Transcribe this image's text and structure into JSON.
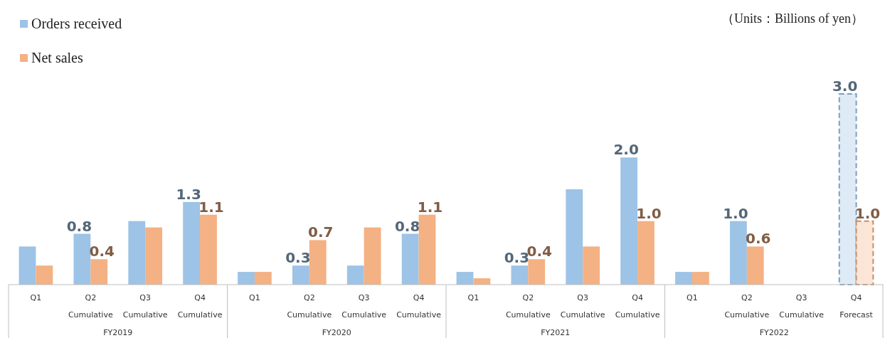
{
  "chart_data": {
    "type": "bar",
    "categories": [
      "Q1",
      "Q2\nCumulative",
      "Q3\nCumulative",
      "Q4\nCumulative",
      "Q1",
      "Q2\nCumulative",
      "Q3\nCumulative",
      "Q4\nCumulative",
      "Q1",
      "Q2\nCumulative",
      "Q3\nCumulative",
      "Q4\nCumulative",
      "Q1",
      "Q2\nCumulative",
      "Q3\nCumulative",
      "Q4\nForecast"
    ],
    "series": [
      {
        "name": "Orders received",
        "color": "#9dc3e6",
        "colors": [
          "#9dc3e6",
          "#9dc3e6",
          "#9dc3e6",
          "#9dc3e6",
          "#9dc3e6",
          "#9dc3e6",
          "#9dc3e6",
          "#9dc3e6",
          "#9dc3e6",
          "#9dc3e6",
          "#9dc3e6",
          "#9dc3e6",
          "#9dc3e6",
          "#9dc3e6",
          "#9dc3e6",
          "#deebf7"
        ],
        "values": [
          0.6,
          0.8,
          1.0,
          1.3,
          0.2,
          0.3,
          0.3,
          0.8,
          0.2,
          0.3,
          1.5,
          2.0,
          0.2,
          1.0,
          null,
          3.0
        ],
        "value_labels": [
          null,
          "0.8",
          null,
          "1.3",
          null,
          "0.3",
          null,
          "0.8",
          null,
          "0.3",
          null,
          "2.0",
          null,
          "1.0",
          null,
          "3.0"
        ]
      },
      {
        "name": "Net sales",
        "color": "#f4b183",
        "colors": [
          "#f4b183",
          "#f4b183",
          "#f4b183",
          "#f4b183",
          "#f4b183",
          "#f4b183",
          "#f4b183",
          "#f4b183",
          "#f4b183",
          "#f4b183",
          "#f4b183",
          "#f4b183",
          "#f4b183",
          "#f4b183",
          "#f4b183",
          "#fbe5d6"
        ],
        "values": [
          0.3,
          0.4,
          0.9,
          1.1,
          0.2,
          0.7,
          0.9,
          1.1,
          0.1,
          0.4,
          0.6,
          1.0,
          0.2,
          0.6,
          null,
          1.0
        ],
        "value_labels": [
          null,
          "0.4",
          null,
          "1.1",
          null,
          "0.7",
          null,
          "1.1",
          null,
          "0.4",
          null,
          "1.0",
          null,
          "0.6",
          null,
          "1.0"
        ]
      }
    ],
    "ylim": [
      0,
      3.0
    ],
    "tick_labels": "x",
    "legend": "top left",
    "annotations": [
      "（Units：Billions of yen）",
      "FY2019",
      "FY2020",
      "FY2021",
      "FY2022"
    ]
  }
}
